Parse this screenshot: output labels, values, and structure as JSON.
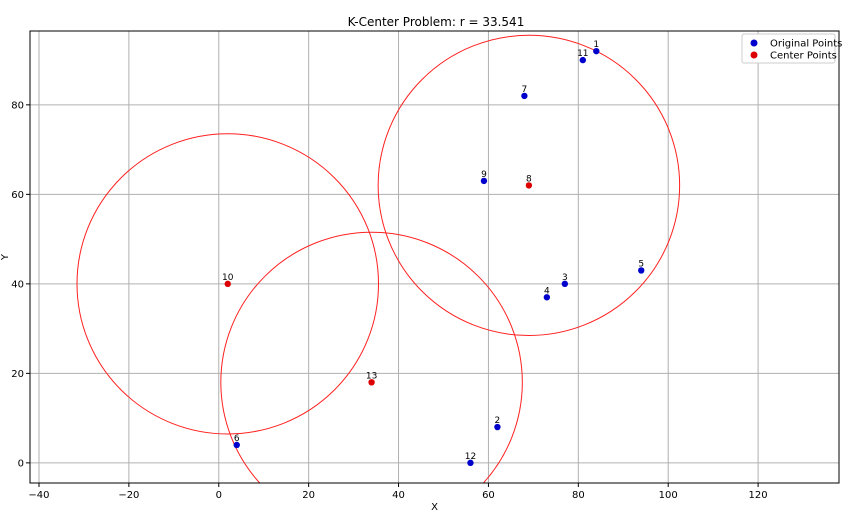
{
  "chart_data": {
    "type": "scatter",
    "title": "K-Center Problem: r = 33.541",
    "xlabel": "X",
    "ylabel": "Y",
    "xlim": [
      -42,
      138
    ],
    "ylim": [
      -4.5,
      96.5
    ],
    "xticks": [
      -40,
      -20,
      0,
      20,
      40,
      60,
      80,
      100,
      120
    ],
    "yticks": [
      0,
      20,
      40,
      60,
      80
    ],
    "grid": true,
    "legend_position": "top-right",
    "radius": 33.541,
    "series": [
      {
        "name": "Original Points",
        "color": "#0000cc",
        "points": [
          {
            "label": "1",
            "x": 84,
            "y": 92
          },
          {
            "label": "11",
            "x": 81,
            "y": 90
          },
          {
            "label": "7",
            "x": 68,
            "y": 82
          },
          {
            "label": "9",
            "x": 59,
            "y": 63
          },
          {
            "label": "3",
            "x": 77,
            "y": 40
          },
          {
            "label": "4",
            "x": 73,
            "y": 37
          },
          {
            "label": "5",
            "x": 94,
            "y": 43
          },
          {
            "label": "2",
            "x": 62,
            "y": 8
          },
          {
            "label": "12",
            "x": 56,
            "y": 0
          },
          {
            "label": "6",
            "x": 4,
            "y": 4
          }
        ]
      },
      {
        "name": "Center Points",
        "color": "#dd0000",
        "points": [
          {
            "label": "8",
            "x": 69,
            "y": 62
          },
          {
            "label": "10",
            "x": 2,
            "y": 40
          },
          {
            "label": "13",
            "x": 34,
            "y": 18
          }
        ]
      }
    ],
    "circle_color": "#ff2020"
  }
}
